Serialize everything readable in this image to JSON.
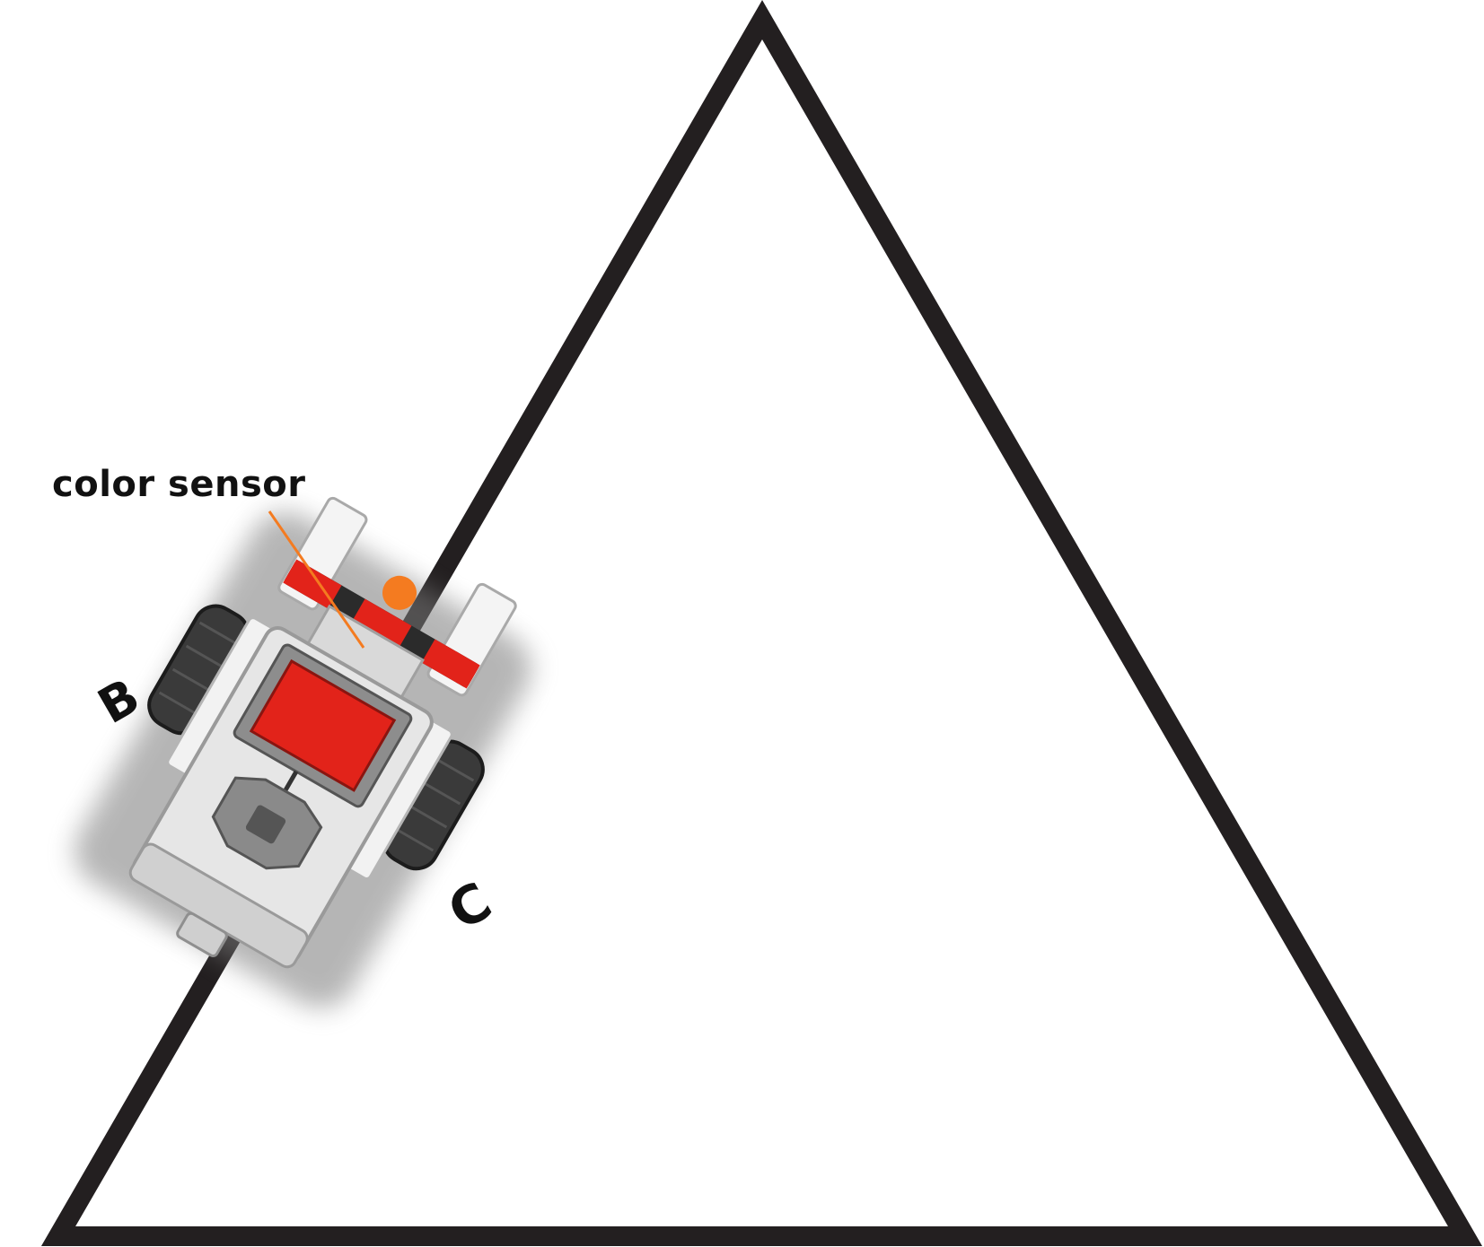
{
  "labels": {
    "sensor": "color sensor",
    "motor_left": "B",
    "motor_right": "C"
  },
  "colors": {
    "track": "#231f20",
    "sensor_callout": "#f47b20",
    "brick_screen": "#e2231a",
    "brick_body": "#e6e6e6",
    "wheel": "#3a3a3a"
  }
}
